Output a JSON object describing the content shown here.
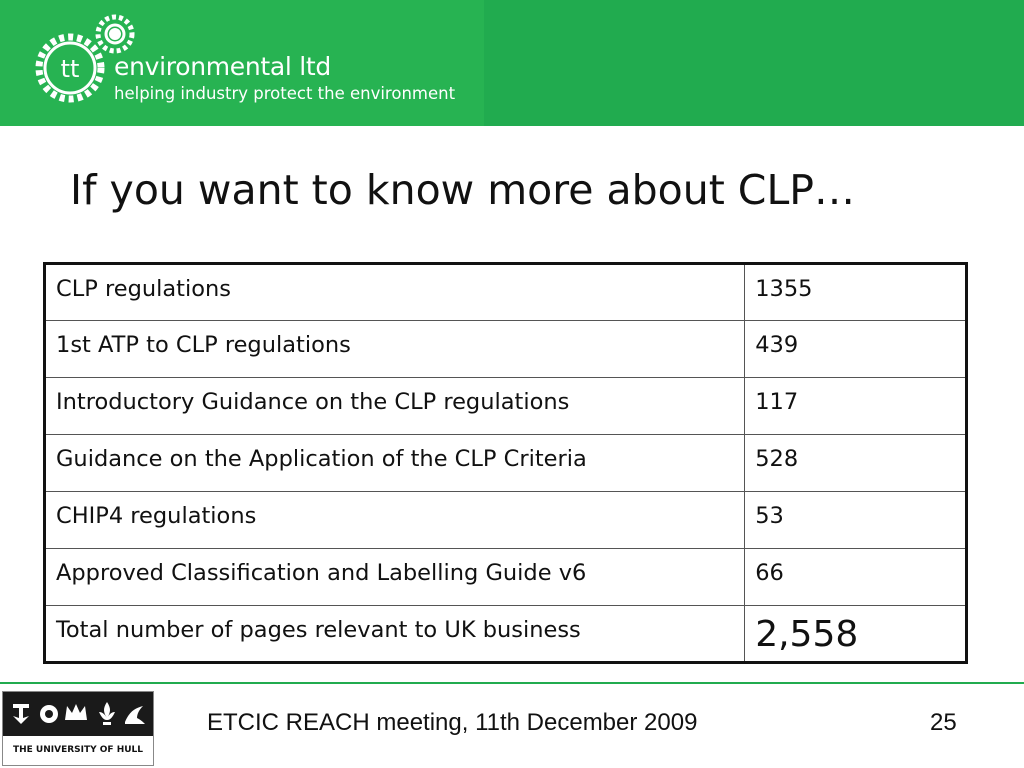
{
  "header": {
    "logo_text": "tt",
    "brand_name": "environmental ltd",
    "tagline": "helping industry protect the environment",
    "colors": {
      "banner": "#21ab4f",
      "banner_light": "#27b352"
    }
  },
  "slide": {
    "title": "If you want to know more about CLP…"
  },
  "table": {
    "rows": [
      {
        "label": "CLP regulations",
        "value": "1355"
      },
      {
        "label": "1st ATP to CLP regulations",
        "value": "439"
      },
      {
        "label": "Introductory Guidance on the CLP regulations",
        "value": "117"
      },
      {
        "label": "Guidance on the Application of the CLP Criteria",
        "value": "528"
      },
      {
        "label": "CHIP4 regulations",
        "value": "53"
      },
      {
        "label": "Approved Classification and Labelling Guide v6",
        "value": "66"
      },
      {
        "label": "Total number of pages relevant to UK business",
        "value": "2,558"
      }
    ]
  },
  "footer": {
    "university": "THE UNIVERSITY OF HULL",
    "meeting": "ETCIC REACH meeting, 11th December 2009",
    "page_number": "25"
  }
}
